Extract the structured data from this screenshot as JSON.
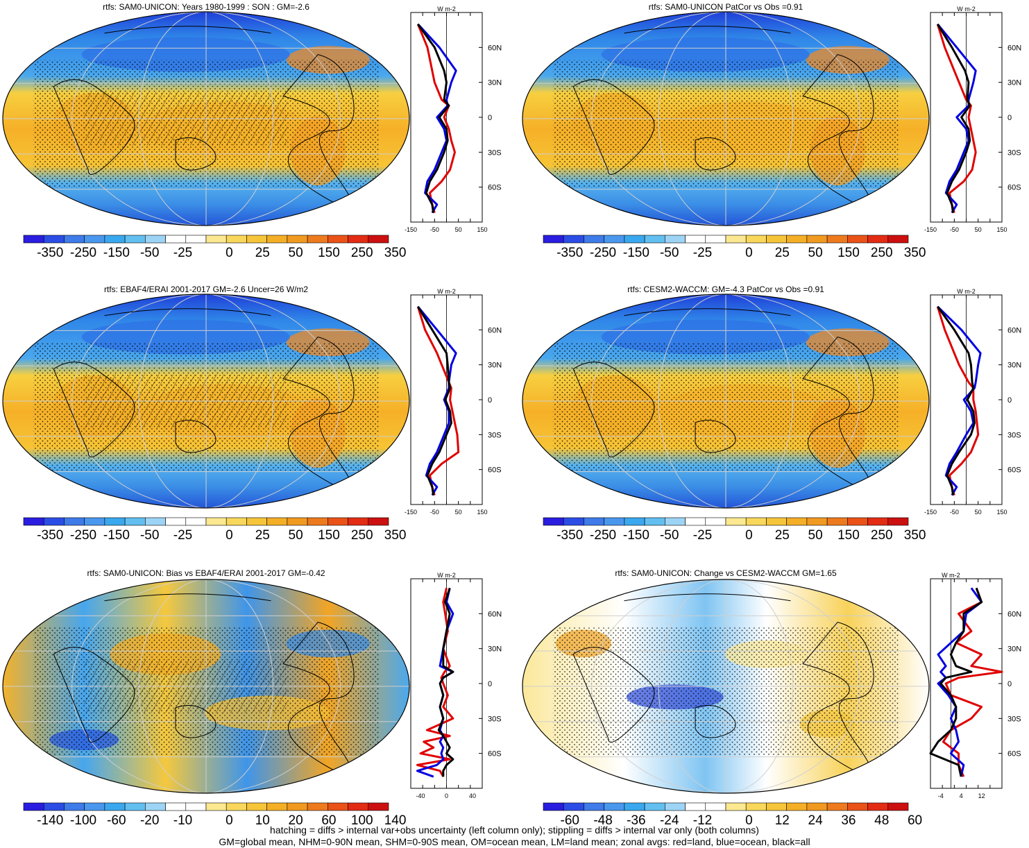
{
  "chart_data": [
    {
      "type": "heatmap",
      "title": "rtfs: SAM0-UNICON: Years 1980-1999 : SON : GM=-2.6",
      "colorbar": {
        "ticks": [
          "-350",
          "-250",
          "-150",
          "-50",
          "-25",
          "0",
          "25",
          "50",
          "150",
          "250",
          "350"
        ]
      },
      "zonal": {
        "ylabel": "W m-2",
        "xticks": [
          "-150",
          "-50",
          "50",
          "150"
        ],
        "xlim": [
          -150,
          150
        ],
        "yticks": [
          "60N",
          "30N",
          "0",
          "30S",
          "60S"
        ],
        "series": [
          {
            "color": "#e00000",
            "lat": [
              80,
              60,
              40,
              30,
              15,
              10,
              0,
              -10,
              -20,
              -30,
              -45,
              -55,
              -65,
              -75,
              -82
            ],
            "values": [
              -120,
              -80,
              -60,
              -50,
              -20,
              10,
              -10,
              10,
              20,
              35,
              15,
              -20,
              -70,
              -60,
              -50
            ]
          },
          {
            "color": "#0000e0",
            "lat": [
              80,
              60,
              40,
              30,
              15,
              10,
              0,
              -10,
              -20,
              -30,
              -45,
              -55,
              -65,
              -75,
              -82
            ],
            "values": [
              -120,
              -30,
              40,
              20,
              0,
              5,
              -40,
              -10,
              0,
              -20,
              -50,
              -80,
              -90,
              -40,
              -60
            ]
          },
          {
            "color": "#000000",
            "lat": [
              80,
              60,
              40,
              30,
              15,
              10,
              0,
              -10,
              -20,
              -30,
              -45,
              -55,
              -65,
              -75,
              -82
            ],
            "values": [
              -120,
              -50,
              -10,
              0,
              -10,
              10,
              -30,
              0,
              5,
              -10,
              -40,
              -70,
              -85,
              -60,
              -55
            ]
          }
        ]
      }
    },
    {
      "type": "heatmap",
      "title": "rtfs: SAM0-UNICON PatCor vs Obs =0.91",
      "colorbar": {
        "ticks": [
          "-350",
          "-250",
          "-150",
          "-50",
          "-25",
          "0",
          "25",
          "50",
          "150",
          "250",
          "350"
        ]
      },
      "zonal": {
        "ylabel": "W m-2",
        "xticks": [
          "-150",
          "-50",
          "50",
          "150"
        ],
        "xlim": [
          -150,
          150
        ],
        "yticks": [
          "60N",
          "30N",
          "0",
          "30S",
          "60S"
        ],
        "series": [
          {
            "color": "#e00000",
            "lat": [
              80,
              60,
              40,
              30,
              15,
              10,
              0,
              -10,
              -20,
              -30,
              -45,
              -55,
              -65,
              -75,
              -82
            ],
            "values": [
              -120,
              -90,
              -50,
              -30,
              0,
              20,
              10,
              20,
              30,
              40,
              25,
              -10,
              -70,
              -60,
              -50
            ]
          },
          {
            "color": "#0000e0",
            "lat": [
              80,
              60,
              40,
              30,
              15,
              10,
              0,
              -10,
              -20,
              -30,
              -45,
              -55,
              -65,
              -75,
              -82
            ],
            "values": [
              -120,
              -40,
              40,
              30,
              10,
              10,
              -40,
              0,
              10,
              -10,
              -40,
              -70,
              -85,
              -40,
              -60
            ]
          },
          {
            "color": "#000000",
            "lat": [
              80,
              60,
              40,
              30,
              15,
              10,
              0,
              -10,
              -20,
              -30,
              -45,
              -55,
              -65,
              -75,
              -82
            ],
            "values": [
              -120,
              -60,
              -5,
              10,
              5,
              15,
              -20,
              10,
              15,
              0,
              -30,
              -60,
              -80,
              -60,
              -55
            ]
          }
        ]
      }
    },
    {
      "type": "heatmap",
      "title": "rtfs: EBAF4/ERAI 2001-2017 GM=-2.6 Uncer=26 W/m2",
      "colorbar": {
        "ticks": [
          "-350",
          "-250",
          "-150",
          "-50",
          "-25",
          "0",
          "25",
          "50",
          "150",
          "250",
          "350"
        ]
      },
      "zonal": {
        "ylabel": "W m-2",
        "xticks": [
          "-150",
          "-50",
          "50",
          "150"
        ],
        "xlim": [
          -150,
          150
        ],
        "yticks": [
          "60N",
          "30N",
          "0",
          "30S",
          "60S"
        ],
        "series": [
          {
            "color": "#e00000",
            "lat": [
              80,
              60,
              40,
              30,
              15,
              10,
              0,
              -10,
              -20,
              -30,
              -45,
              -55,
              -65,
              -75,
              -82
            ],
            "values": [
              -120,
              -90,
              -40,
              -20,
              10,
              20,
              15,
              25,
              35,
              45,
              50,
              -20,
              -70,
              -60,
              -50
            ]
          },
          {
            "color": "#0000e0",
            "lat": [
              80,
              60,
              40,
              30,
              15,
              10,
              0,
              -10,
              -20,
              -30,
              -45,
              -55,
              -65,
              -75,
              -82
            ],
            "values": [
              -120,
              -40,
              40,
              20,
              10,
              10,
              -10,
              10,
              10,
              -10,
              -40,
              -70,
              -85,
              -40,
              -60
            ]
          },
          {
            "color": "#000000",
            "lat": [
              80,
              60,
              40,
              30,
              15,
              10,
              0,
              -10,
              -20,
              -30,
              -45,
              -55,
              -65,
              -75,
              -82
            ],
            "values": [
              -120,
              -60,
              0,
              5,
              10,
              15,
              -5,
              15,
              20,
              0,
              -30,
              -60,
              -80,
              -60,
              -55
            ]
          }
        ]
      }
    },
    {
      "type": "heatmap",
      "title": "rtfs: CESM2-WACCM: GM=-4.3 PatCor vs Obs =0.91",
      "colorbar": {
        "ticks": [
          "-350",
          "-250",
          "-150",
          "-50",
          "-25",
          "0",
          "25",
          "50",
          "150",
          "250",
          "350"
        ]
      },
      "zonal": {
        "ylabel": "W m-2",
        "xticks": [
          "-150",
          "-50",
          "50",
          "150"
        ],
        "xlim": [
          -150,
          150
        ],
        "yticks": [
          "60N",
          "30N",
          "0",
          "30S",
          "60S"
        ],
        "series": [
          {
            "color": "#e00000",
            "lat": [
              80,
              60,
              40,
              30,
              15,
              10,
              0,
              -10,
              -20,
              -30,
              -45,
              -55,
              -65,
              -75,
              -82
            ],
            "values": [
              -120,
              -90,
              -50,
              -30,
              10,
              30,
              30,
              40,
              45,
              50,
              20,
              -20,
              -70,
              -60,
              -50
            ]
          },
          {
            "color": "#0000e0",
            "lat": [
              80,
              60,
              40,
              30,
              15,
              10,
              0,
              -10,
              -20,
              -30,
              -45,
              -55,
              -65,
              -75,
              -82
            ],
            "values": [
              -120,
              -20,
              60,
              50,
              40,
              35,
              -10,
              20,
              30,
              0,
              -40,
              -70,
              -85,
              -40,
              -60
            ]
          },
          {
            "color": "#000000",
            "lat": [
              80,
              60,
              40,
              30,
              15,
              10,
              0,
              -10,
              -20,
              -30,
              -45,
              -55,
              -65,
              -75,
              -82
            ],
            "values": [
              -120,
              -50,
              10,
              20,
              25,
              30,
              5,
              30,
              35,
              20,
              -30,
              -60,
              -80,
              -60,
              -55
            ]
          }
        ]
      }
    },
    {
      "type": "heatmap",
      "title": "rtfs: SAM0-UNICON: Bias vs EBAF4/ERAI 2001-2017  GM=-0.42",
      "colorbar": {
        "ticks": [
          "-140",
          "-100",
          "-60",
          "-20",
          "-10",
          "0",
          "10",
          "20",
          "60",
          "100",
          "140"
        ]
      },
      "zonal": {
        "ylabel": "W m-2",
        "xticks": [
          "-40",
          "0",
          "40"
        ],
        "xlim": [
          -55,
          55
        ],
        "yticks": [
          "60N",
          "30N",
          "0",
          "30S",
          "60S"
        ],
        "series": [
          {
            "color": "#e00000",
            "lat": [
              82,
              70,
              60,
              45,
              30,
              15,
              10,
              5,
              0,
              -10,
              -20,
              -30,
              -40,
              -45,
              -50,
              -55,
              -60,
              -65,
              -70,
              -75,
              -80
            ],
            "values": [
              0,
              -5,
              -2,
              2,
              -5,
              5,
              -3,
              -8,
              -5,
              2,
              -5,
              10,
              -30,
              5,
              -35,
              -20,
              -40,
              5,
              -45,
              -10,
              -5
            ]
          },
          {
            "color": "#0000e0",
            "lat": [
              82,
              70,
              60,
              45,
              30,
              15,
              10,
              5,
              0,
              -10,
              -20,
              -30,
              -40,
              -45,
              -50,
              -55,
              -60,
              -65,
              -70,
              -75,
              -80
            ],
            "values": [
              5,
              0,
              10,
              0,
              -5,
              -10,
              10,
              -5,
              -10,
              -5,
              -10,
              -5,
              -10,
              -5,
              -10,
              -5,
              -8,
              -5,
              -15,
              -45,
              -20
            ]
          },
          {
            "color": "#000000",
            "lat": [
              82,
              70,
              60,
              45,
              30,
              15,
              10,
              5,
              0,
              -10,
              -20,
              -30,
              -40,
              -45,
              -50,
              -55,
              -60,
              -65,
              -70,
              -75,
              -80
            ],
            "values": [
              5,
              -2,
              5,
              0,
              -5,
              -5,
              10,
              -5,
              -10,
              -5,
              -10,
              -5,
              -12,
              -5,
              0,
              5,
              0,
              10,
              0,
              -5,
              -5
            ]
          }
        ]
      }
    },
    {
      "type": "heatmap",
      "title": "rtfs: SAM0-UNICON: Change vs CESM2-WACCM GM=1.65",
      "colorbar": {
        "ticks": [
          "-60",
          "-48",
          "-36",
          "-24",
          "-12",
          "0",
          "12",
          "24",
          "36",
          "48",
          "60"
        ]
      },
      "zonal": {
        "ylabel": "W m-2",
        "xticks": [
          "-4",
          "4",
          "12"
        ],
        "xlim": [
          -8,
          20
        ],
        "yticks": [
          "60N",
          "30N",
          "0",
          "30S",
          "60S"
        ],
        "series": [
          {
            "color": "#e00000",
            "lat": [
              82,
              70,
              60,
              45,
              35,
              25,
              15,
              10,
              5,
              0,
              -10,
              -20,
              -30,
              -40,
              -50,
              -60,
              -70,
              -80
            ],
            "values": [
              10,
              12,
              3,
              8,
              2,
              12,
              8,
              20,
              3,
              -2,
              0,
              12,
              8,
              0,
              -3,
              3,
              3,
              5
            ]
          },
          {
            "color": "#0000e0",
            "lat": [
              82,
              70,
              60,
              45,
              35,
              25,
              15,
              10,
              5,
              0,
              -10,
              -20,
              -30,
              -40,
              -50,
              -60,
              -70,
              -80
            ],
            "values": [
              8,
              12,
              6,
              5,
              0,
              -5,
              -2,
              -4,
              -2,
              -5,
              -1,
              2,
              0,
              2,
              3,
              0,
              5,
              4
            ]
          },
          {
            "color": "#000000",
            "lat": [
              82,
              70,
              60,
              45,
              35,
              25,
              15,
              10,
              5,
              0,
              -10,
              -20,
              -30,
              -40,
              -50,
              -60,
              -70,
              -80
            ],
            "values": [
              10,
              12,
              5,
              5,
              2,
              0,
              2,
              8,
              -2,
              -4,
              0,
              2,
              2,
              0,
              -5,
              -8,
              3,
              4
            ]
          }
        ]
      }
    }
  ],
  "footer": {
    "line1": "hatching = diffs > internal var+obs uncertainty (left column only); stippling = diffs > internal var only (both columns)",
    "line2": "GM=global mean, NHM=0-90N mean, SHM=0-90S mean, OM=ocean mean, LM=land mean; zonal avgs: red=land, blue=ocean, black=all"
  }
}
